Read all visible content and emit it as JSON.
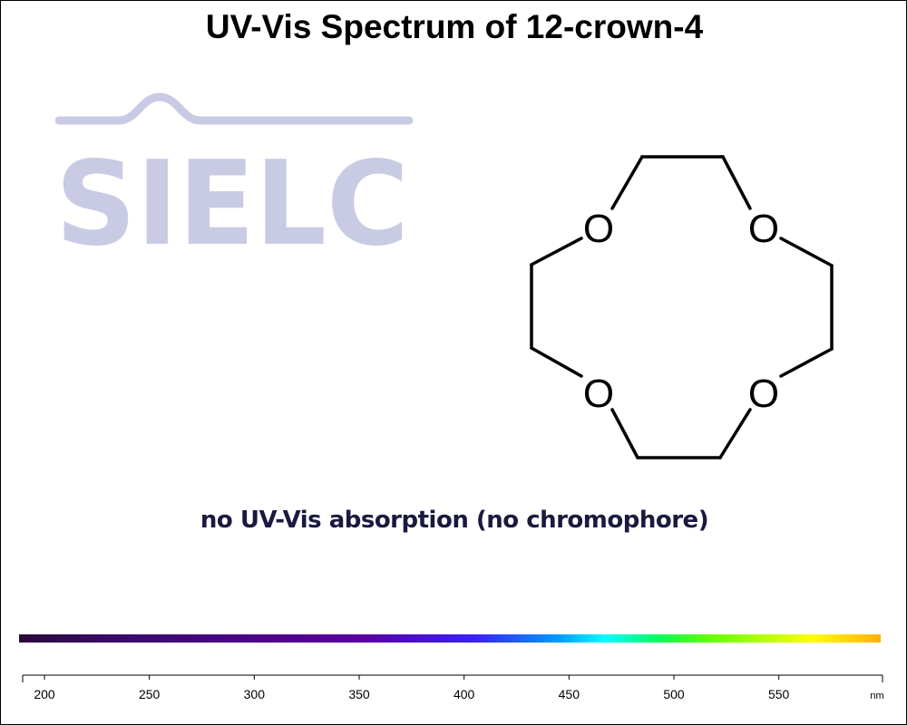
{
  "logo": {
    "text": "SIELC"
  },
  "molecule": {
    "atoms": [
      "O",
      "O",
      "O",
      "O"
    ]
  },
  "note": "no UV-Vis absorption (no chromophore)",
  "colors": {
    "title": "#000000",
    "logo": "#c8cbe3",
    "note": "#1a1a40",
    "spectrum": [
      "#2a0a3a",
      "#3a0a6a",
      "#5a00a0",
      "#3a20ff",
      "#00a0ff",
      "#00ffff",
      "#00ff60",
      "#60ff00",
      "#ffff00",
      "#ffb000"
    ]
  },
  "chart_data": {
    "type": "line",
    "title": "UV-Vis Spectrum of 12-crown-4",
    "xlabel": "nm",
    "ylabel": "",
    "x_ticks": [
      200,
      250,
      300,
      350,
      400,
      450,
      500,
      550
    ],
    "xlim": [
      190,
      600
    ],
    "series": [],
    "grid": false,
    "legend": "none"
  }
}
